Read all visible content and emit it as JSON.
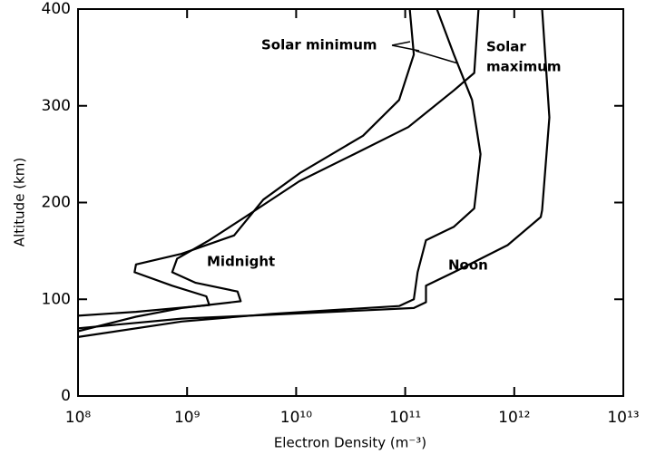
{
  "chart_data": {
    "type": "line",
    "x_label": "Electron Density (m⁻³)",
    "y_label": "Altitude (km)",
    "xlog": true,
    "xlim": [
      100000000,
      10000000000000
    ],
    "xticks": [
      {
        "value": 100000000,
        "label": "10⁸"
      },
      {
        "value": 1000000000,
        "label": "10⁹"
      },
      {
        "value": 10000000000,
        "label": "10¹⁰"
      },
      {
        "value": 100000000000,
        "label": "10¹¹"
      },
      {
        "value": 1000000000000,
        "label": "10¹²"
      },
      {
        "value": 10000000000000,
        "label": "10¹³"
      }
    ],
    "ylim": [
      0,
      400
    ],
    "yticks": [
      0,
      100,
      200,
      300,
      400
    ],
    "annotations": [
      "Solar minimum",
      "Solar",
      "maximum",
      "Midnight",
      "Noon"
    ],
    "series": [
      {
        "color": "#000000",
        "x": [
          110000000000,
          120000000000,
          88000000000,
          41000000000,
          11000000000,
          5000000000,
          2700000000,
          890000000,
          340000000,
          330000000,
          730000000,
          1500000000,
          1600000000,
          340000000,
          100000000
        ],
        "values": [
          400,
          353,
          306,
          269,
          231,
          203,
          166,
          147,
          136,
          128,
          114,
          103,
          94,
          87,
          83
        ]
      },
      {
        "color": "#000000",
        "x": [
          470000000000,
          430000000000,
          280000000000,
          107000000000,
          34000000000,
          10700000000,
          3400000000,
          1600000000,
          810000000,
          730000000,
          1200000000,
          2900000000,
          3100000000,
          890000000,
          340000000,
          100000000
        ],
        "values": [
          400,
          334,
          316,
          278,
          250,
          222,
          185,
          161,
          142,
          128,
          117,
          108,
          98,
          91,
          82,
          67
        ]
      },
      {
        "color": "#000000",
        "x": [
          195000000000,
          280000000000,
          410000000000,
          490000000000,
          430000000000,
          280000000000,
          155000000000,
          130000000000,
          120000000000,
          88000000000,
          6000000000,
          890000000,
          100000000
        ],
        "values": [
          400,
          353,
          306,
          250,
          194,
          175,
          161,
          128,
          100,
          93,
          85,
          77,
          61
        ]
      },
      {
        "color": "#000000",
        "x": [
          1800000000000,
          2100000000000,
          1800000000000,
          1750000000000,
          870000000000,
          280000000000,
          155000000000,
          155000000000,
          120000000000,
          6000000000,
          890000000,
          100000000
        ],
        "values": [
          400,
          288,
          192,
          185,
          156,
          128,
          114,
          97,
          91,
          84,
          80,
          70
        ]
      }
    ]
  }
}
